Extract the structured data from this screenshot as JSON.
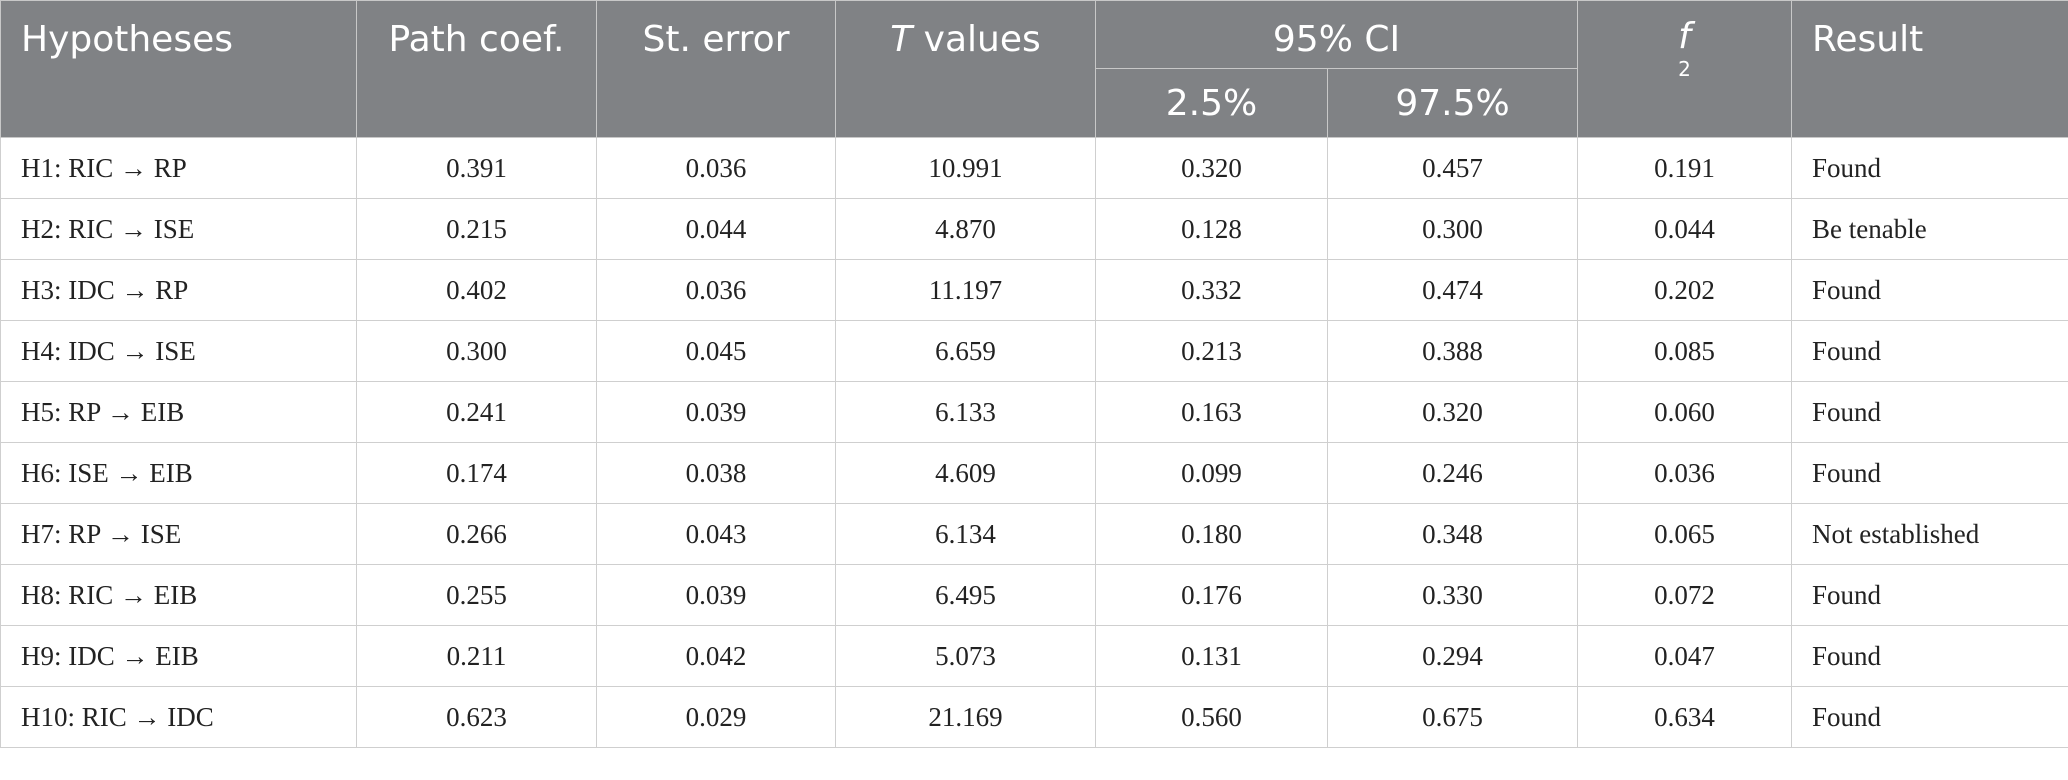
{
  "table": {
    "headers": {
      "hypotheses": "Hypotheses",
      "path_coef": "Path coef.",
      "st_error": "St. error",
      "t_values_italic": "T",
      "t_values_rest": " values",
      "ci": "95% CI",
      "ci_low": "2.5%",
      "ci_high": "97.5%",
      "f_base": "f",
      "f_sub": "2",
      "result": "Result"
    },
    "rows": [
      {
        "hypothesis": "H1: RIC → RP",
        "path_coef": "0.391",
        "st_error": "0.036",
        "t_value": "10.991",
        "ci_low": "0.320",
        "ci_high": "0.457",
        "f2": "0.191",
        "result": "Found"
      },
      {
        "hypothesis": "H2: RIC → ISE",
        "path_coef": "0.215",
        "st_error": "0.044",
        "t_value": "4.870",
        "ci_low": "0.128",
        "ci_high": "0.300",
        "f2": "0.044",
        "result": "Be tenable"
      },
      {
        "hypothesis": "H3: IDC → RP",
        "path_coef": "0.402",
        "st_error": "0.036",
        "t_value": "11.197",
        "ci_low": "0.332",
        "ci_high": "0.474",
        "f2": "0.202",
        "result": "Found"
      },
      {
        "hypothesis": "H4: IDC → ISE",
        "path_coef": "0.300",
        "st_error": "0.045",
        "t_value": "6.659",
        "ci_low": "0.213",
        "ci_high": "0.388",
        "f2": "0.085",
        "result": "Found"
      },
      {
        "hypothesis": "H5: RP → EIB",
        "path_coef": "0.241",
        "st_error": "0.039",
        "t_value": "6.133",
        "ci_low": "0.163",
        "ci_high": "0.320",
        "f2": "0.060",
        "result": "Found"
      },
      {
        "hypothesis": "H6: ISE → EIB",
        "path_coef": "0.174",
        "st_error": "0.038",
        "t_value": "4.609",
        "ci_low": "0.099",
        "ci_high": "0.246",
        "f2": "0.036",
        "result": "Found"
      },
      {
        "hypothesis": "H7: RP → ISE",
        "path_coef": "0.266",
        "st_error": "0.043",
        "t_value": "6.134",
        "ci_low": "0.180",
        "ci_high": "0.348",
        "f2": "0.065",
        "result": "Not established"
      },
      {
        "hypothesis": "H8: RIC → EIB",
        "path_coef": "0.255",
        "st_error": "0.039",
        "t_value": "6.495",
        "ci_low": "0.176",
        "ci_high": "0.330",
        "f2": "0.072",
        "result": "Found"
      },
      {
        "hypothesis": "H9: IDC → EIB",
        "path_coef": "0.211",
        "st_error": "0.042",
        "t_value": "5.073",
        "ci_low": "0.131",
        "ci_high": "0.294",
        "f2": "0.047",
        "result": "Found"
      },
      {
        "hypothesis": "H10: RIC → IDC",
        "path_coef": "0.623",
        "st_error": "0.029",
        "t_value": "21.169",
        "ci_low": "0.560",
        "ci_high": "0.675",
        "f2": "0.634",
        "result": "Found"
      }
    ]
  },
  "colors": {
    "header_bg": "#808285",
    "header_text": "#ffffff",
    "grid_line": "#cfcfcf"
  }
}
